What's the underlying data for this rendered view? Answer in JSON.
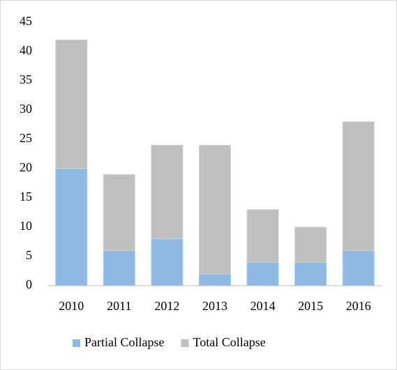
{
  "chart_data": {
    "type": "bar",
    "stacked": true,
    "categories": [
      "2010",
      "2011",
      "2012",
      "2013",
      "2014",
      "2015",
      "2016"
    ],
    "series": [
      {
        "name": "Partial Collapse",
        "color": "#8db9e2",
        "values": [
          20,
          6,
          8,
          2,
          4,
          4,
          6
        ]
      },
      {
        "name": "Total Collapse",
        "color": "#bfbfbf",
        "values": [
          22,
          13,
          16,
          22,
          9,
          6,
          22
        ]
      }
    ],
    "ylim": [
      0,
      45
    ],
    "yticks": [
      0,
      5,
      10,
      15,
      20,
      25,
      30,
      35,
      40,
      45
    ],
    "grid": false,
    "legend": "bottom"
  }
}
